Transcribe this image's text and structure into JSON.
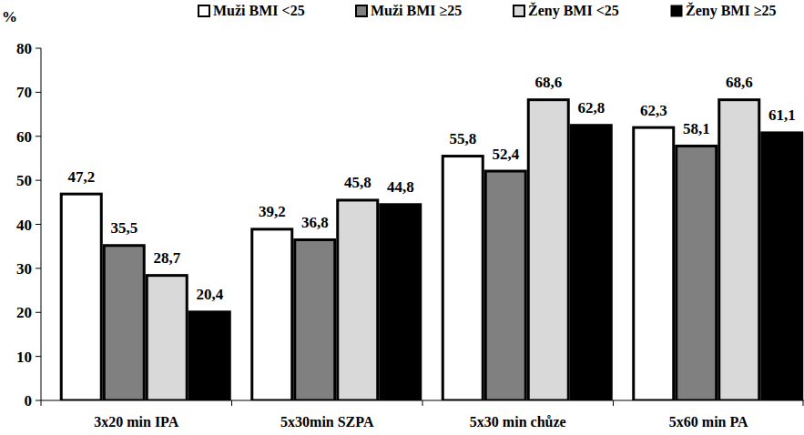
{
  "chart_data": {
    "type": "bar",
    "y_label": "%",
    "categories": [
      "3x20 min IPA",
      "5x30min SZPA",
      "5x30 min chůze",
      "5x60 min PA"
    ],
    "series": [
      {
        "name": "Muži BMI <25",
        "color": "#ffffff",
        "values": [
          47.2,
          39.2,
          55.8,
          62.3
        ],
        "value_labels": [
          "47,2",
          "39,2",
          "55,8",
          "62,3"
        ]
      },
      {
        "name": "Muži BMI ≥25",
        "color": "#808080",
        "values": [
          35.5,
          36.8,
          52.4,
          58.1
        ],
        "value_labels": [
          "35,5",
          "36,8",
          "52,4",
          "58,1"
        ]
      },
      {
        "name": "Ženy BMI <25",
        "color": "#d9d9d9",
        "values": [
          28.7,
          45.8,
          68.6,
          68.6
        ],
        "value_labels": [
          "28,7",
          "45,8",
          "68,6",
          "68,6"
        ]
      },
      {
        "name": "Ženy BMI ≥25",
        "color": "#000000",
        "values": [
          20.4,
          44.8,
          62.8,
          61.1
        ],
        "value_labels": [
          "20,4",
          "44,8",
          "62,8",
          "61,1"
        ]
      }
    ],
    "ylim": [
      0,
      80
    ],
    "yticks": [
      0,
      10,
      20,
      30,
      40,
      50,
      60,
      70,
      80
    ],
    "grid": false,
    "legend": "top",
    "data_labels": true
  }
}
